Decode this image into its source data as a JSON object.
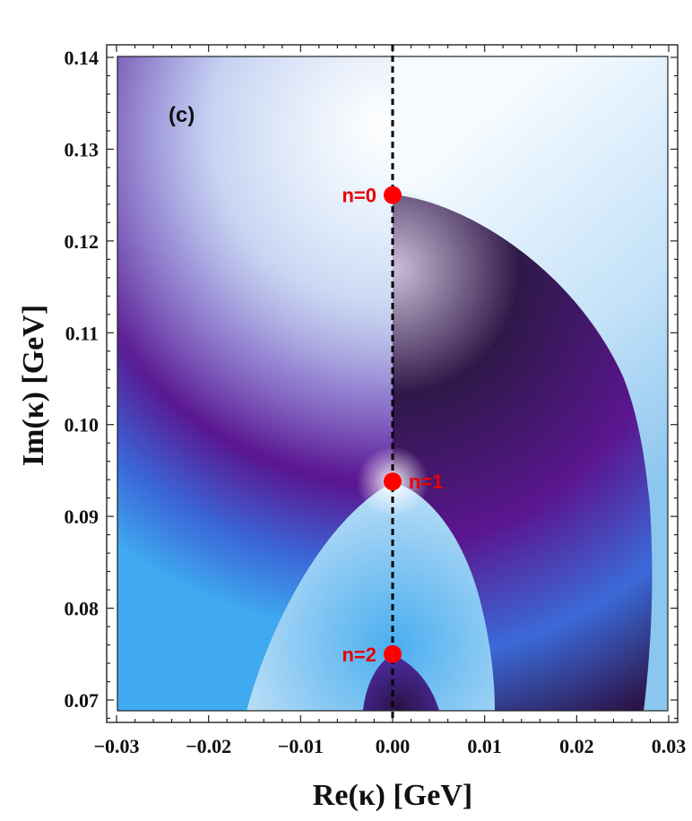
{
  "chart_data": {
    "type": "heatmap",
    "panel_label": "(c)",
    "xlabel": "Re(κ) [GeV]",
    "ylabel": "Im(κ) [GeV]",
    "xlim": [
      -0.03,
      0.03
    ],
    "ylim": [
      0.069,
      0.14
    ],
    "x_ticks": [
      -0.03,
      -0.02,
      -0.01,
      0.0,
      0.01,
      0.02,
      0.03
    ],
    "x_tick_labels": [
      "−0.03",
      "−0.02",
      "−0.01",
      "0.00",
      "0.01",
      "0.02",
      "0.03"
    ],
    "y_ticks": [
      0.07,
      0.08,
      0.09,
      0.1,
      0.11,
      0.12,
      0.13,
      0.14
    ],
    "y_tick_labels": [
      "0.07",
      "0.08",
      "0.09",
      "0.10",
      "0.11",
      "0.12",
      "0.13",
      "0.14"
    ],
    "reference_line": {
      "x": 0.0,
      "style": "dashed",
      "color": "#000000"
    },
    "points": [
      {
        "label": "n=0",
        "x": 0.0,
        "y": 0.125
      },
      {
        "label": "n=1",
        "x": 0.0,
        "y": 0.0938
      },
      {
        "label": "n=2",
        "x": 0.0,
        "y": 0.075
      }
    ],
    "colors": {
      "point": "#ff0000",
      "point_label": "#e60000",
      "light": "#ddeefc",
      "sky": "#4aaef0",
      "blue": "#3a66d8",
      "purple": "#5a1690",
      "dark": "#281040"
    }
  }
}
